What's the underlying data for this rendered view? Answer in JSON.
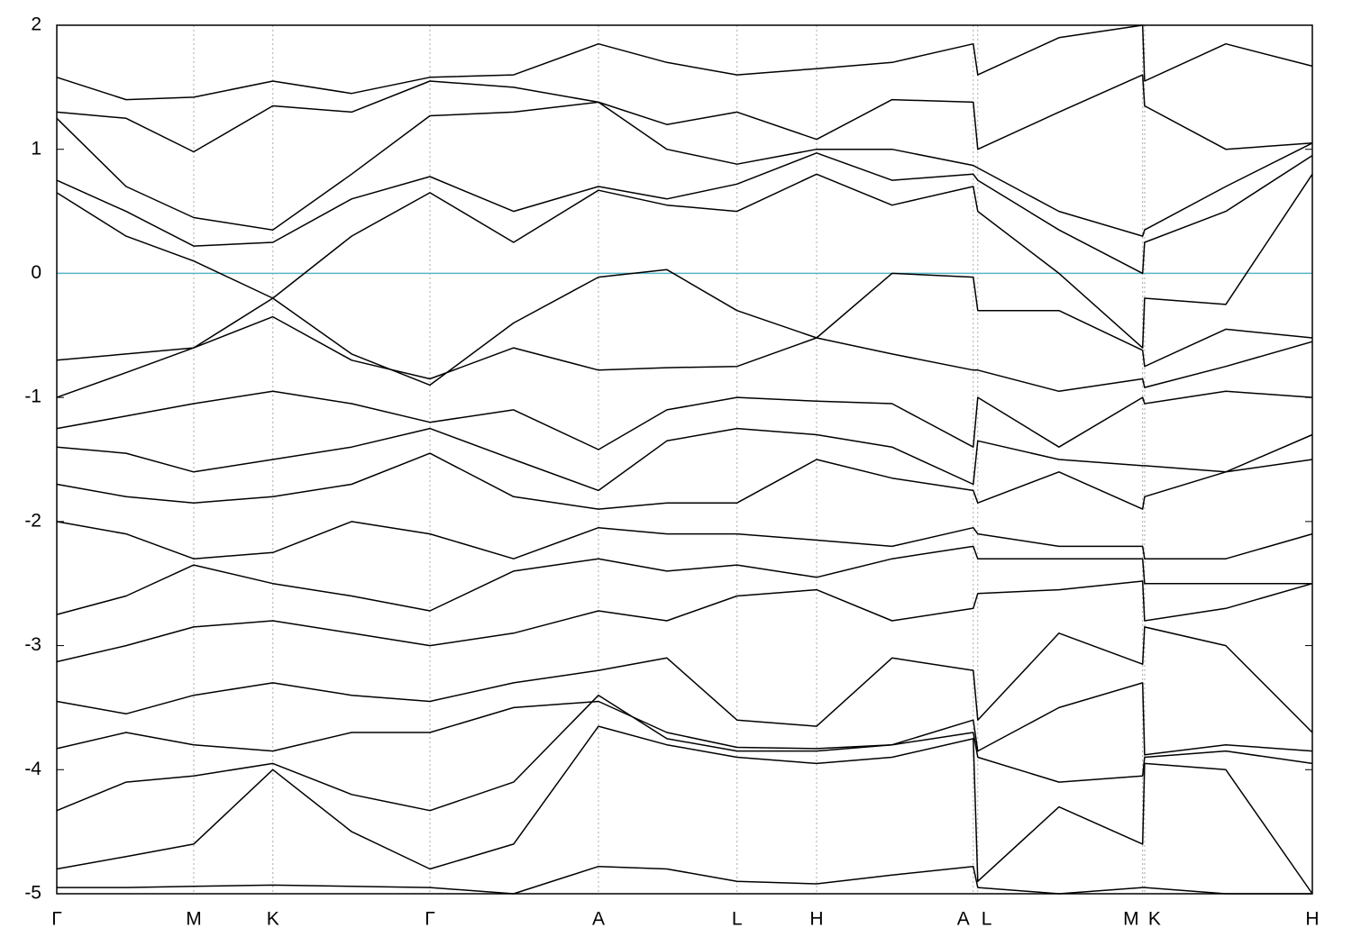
{
  "chart_data": {
    "type": "line",
    "x": [
      0,
      0.169,
      0.334,
      0.527,
      0.719,
      0.91,
      1.114,
      1.321,
      1.488,
      1.659,
      1.853,
      2.037,
      2.235,
      2.246,
      2.444,
      2.648,
      2.653,
      2.851,
      3.062
    ],
    "color": "#000000",
    "series": [
      {
        "values": [
          -4.95,
          -4.95,
          -4.94,
          -4.93,
          -4.94,
          -4.95,
          -5.0,
          -4.78,
          -4.8,
          -4.9,
          -4.92,
          -4.85,
          -4.78,
          -4.95,
          -5.0,
          -4.95,
          -4.95,
          -5.0,
          -5.0
        ]
      },
      {
        "values": [
          -4.8,
          -4.7,
          -4.6,
          -4.0,
          -4.5,
          -4.8,
          -4.6,
          -3.65,
          -3.8,
          -3.9,
          -3.95,
          -3.9,
          -3.75,
          -4.9,
          -4.3,
          -4.6,
          -3.95,
          -4.0,
          -5.0
        ]
      },
      {
        "values": [
          -4.33,
          -4.1,
          -4.05,
          -3.95,
          -4.2,
          -4.33,
          -4.1,
          -3.4,
          -3.75,
          -3.85,
          -3.85,
          -3.8,
          -3.7,
          -3.9,
          -4.1,
          -4.05,
          -3.9,
          -3.85,
          -3.95
        ]
      },
      {
        "values": [
          -3.83,
          -3.7,
          -3.8,
          -3.85,
          -3.7,
          -3.7,
          -3.5,
          -3.45,
          -3.7,
          -3.82,
          -3.83,
          -3.8,
          -3.6,
          -3.85,
          -3.5,
          -3.3,
          -3.88,
          -3.8,
          -3.85
        ]
      },
      {
        "values": [
          -3.45,
          -3.55,
          -3.4,
          -3.3,
          -3.4,
          -3.45,
          -3.3,
          -3.2,
          -3.1,
          -3.6,
          -3.65,
          -3.1,
          -3.2,
          -3.6,
          -2.9,
          -3.15,
          -2.85,
          -3.0,
          -3.7
        ]
      },
      {
        "values": [
          -3.13,
          -3.0,
          -2.85,
          -2.8,
          -2.9,
          -3.0,
          -2.9,
          -2.72,
          -2.8,
          -2.6,
          -2.55,
          -2.8,
          -2.7,
          -2.58,
          -2.55,
          -2.48,
          -2.8,
          -2.7,
          -2.5
        ]
      },
      {
        "values": [
          -2.75,
          -2.6,
          -2.35,
          -2.5,
          -2.6,
          -2.72,
          -2.4,
          -2.3,
          -2.4,
          -2.35,
          -2.45,
          -2.3,
          -2.2,
          -2.3,
          -2.3,
          -2.3,
          -2.5,
          -2.5,
          -2.5
        ]
      },
      {
        "values": [
          -2.0,
          -2.1,
          -2.3,
          -2.25,
          -2.0,
          -2.1,
          -2.3,
          -2.05,
          -2.1,
          -2.1,
          -2.15,
          -2.2,
          -2.05,
          -2.1,
          -2.2,
          -2.2,
          -2.3,
          -2.3,
          -2.1
        ]
      },
      {
        "values": [
          -1.7,
          -1.8,
          -1.85,
          -1.8,
          -1.7,
          -1.45,
          -1.8,
          -1.9,
          -1.85,
          -1.85,
          -1.5,
          -1.65,
          -1.75,
          -1.85,
          -1.6,
          -1.9,
          -1.8,
          -1.6,
          -1.3
        ]
      },
      {
        "values": [
          -1.4,
          -1.45,
          -1.6,
          -1.5,
          -1.4,
          -1.25,
          -1.5,
          -1.75,
          -1.35,
          -1.25,
          -1.3,
          -1.4,
          -1.7,
          -1.35,
          -1.5,
          -1.55,
          -1.55,
          -1.6,
          -1.5
        ]
      },
      {
        "values": [
          -1.25,
          -1.15,
          -1.05,
          -0.95,
          -1.05,
          -1.2,
          -1.1,
          -1.42,
          -1.1,
          -1.0,
          -1.03,
          -1.05,
          -1.4,
          -1.0,
          -1.4,
          -1.0,
          -1.05,
          -0.95,
          -1.0
        ]
      },
      {
        "values": [
          -1.0,
          -0.8,
          -0.6,
          -0.35,
          -0.7,
          -0.85,
          -0.6,
          -0.78,
          -0.76,
          -0.75,
          -0.52,
          -0.65,
          -0.78,
          -0.78,
          -0.95,
          -0.85,
          -0.92,
          -0.75,
          -0.55
        ]
      },
      {
        "values": [
          -0.7,
          -0.65,
          -0.6,
          -0.2,
          -0.65,
          -0.9,
          -0.4,
          -0.03,
          0.03,
          -0.3,
          -0.52,
          0.0,
          -0.03,
          -0.3,
          -0.3,
          -0.62,
          -0.75,
          -0.45,
          -0.52
        ]
      },
      {
        "values": [
          0.65,
          0.3,
          0.1,
          -0.2,
          0.3,
          0.65,
          0.25,
          0.67,
          0.55,
          0.5,
          0.8,
          0.55,
          0.7,
          0.5,
          0.0,
          -0.6,
          -0.2,
          -0.25,
          0.8
        ]
      },
      {
        "values": [
          0.75,
          0.5,
          0.22,
          0.25,
          0.6,
          0.78,
          0.5,
          0.7,
          0.6,
          0.72,
          0.97,
          0.75,
          0.8,
          0.75,
          0.35,
          0.0,
          0.25,
          0.5,
          0.95
        ]
      },
      {
        "values": [
          1.25,
          0.7,
          0.45,
          0.35,
          0.8,
          1.27,
          1.3,
          1.38,
          1.0,
          0.88,
          1.0,
          1.0,
          0.87,
          0.85,
          0.5,
          0.3,
          0.35,
          0.7,
          1.05
        ]
      },
      {
        "values": [
          1.3,
          1.25,
          0.98,
          1.35,
          1.3,
          1.55,
          1.5,
          1.38,
          1.2,
          1.3,
          1.08,
          1.4,
          1.38,
          1.0,
          1.3,
          1.6,
          1.35,
          1.0,
          1.05
        ]
      },
      {
        "values": [
          1.58,
          1.4,
          1.42,
          1.55,
          1.45,
          1.58,
          1.6,
          1.85,
          1.7,
          1.6,
          1.65,
          1.7,
          1.85,
          1.6,
          1.9,
          2.0,
          1.55,
          1.85,
          1.67
        ]
      }
    ],
    "xlim": [
      0,
      3.062
    ],
    "xticks": [
      {
        "value": 0,
        "label": "Γ"
      },
      {
        "value": 0.334,
        "label": "M"
      },
      {
        "value": 0.527,
        "label": "K"
      },
      {
        "value": 0.91,
        "label": "Γ"
      },
      {
        "value": 1.321,
        "label": "A"
      },
      {
        "value": 1.659,
        "label": "L"
      },
      {
        "value": 1.853,
        "label": "H"
      },
      {
        "value": 2.235,
        "label": "A"
      },
      {
        "value": 2.246,
        "label": "L"
      },
      {
        "value": 2.648,
        "label": "M"
      },
      {
        "value": 2.653,
        "label": "K"
      },
      {
        "value": 3.062,
        "label": "H"
      }
    ],
    "ylim": [
      -5,
      2
    ],
    "yticks": [
      -5,
      -4,
      -3,
      -2,
      -1,
      0,
      1,
      2
    ],
    "x_grid": true,
    "reference_line": {
      "value": 0,
      "color": "#5ab4c8"
    }
  }
}
